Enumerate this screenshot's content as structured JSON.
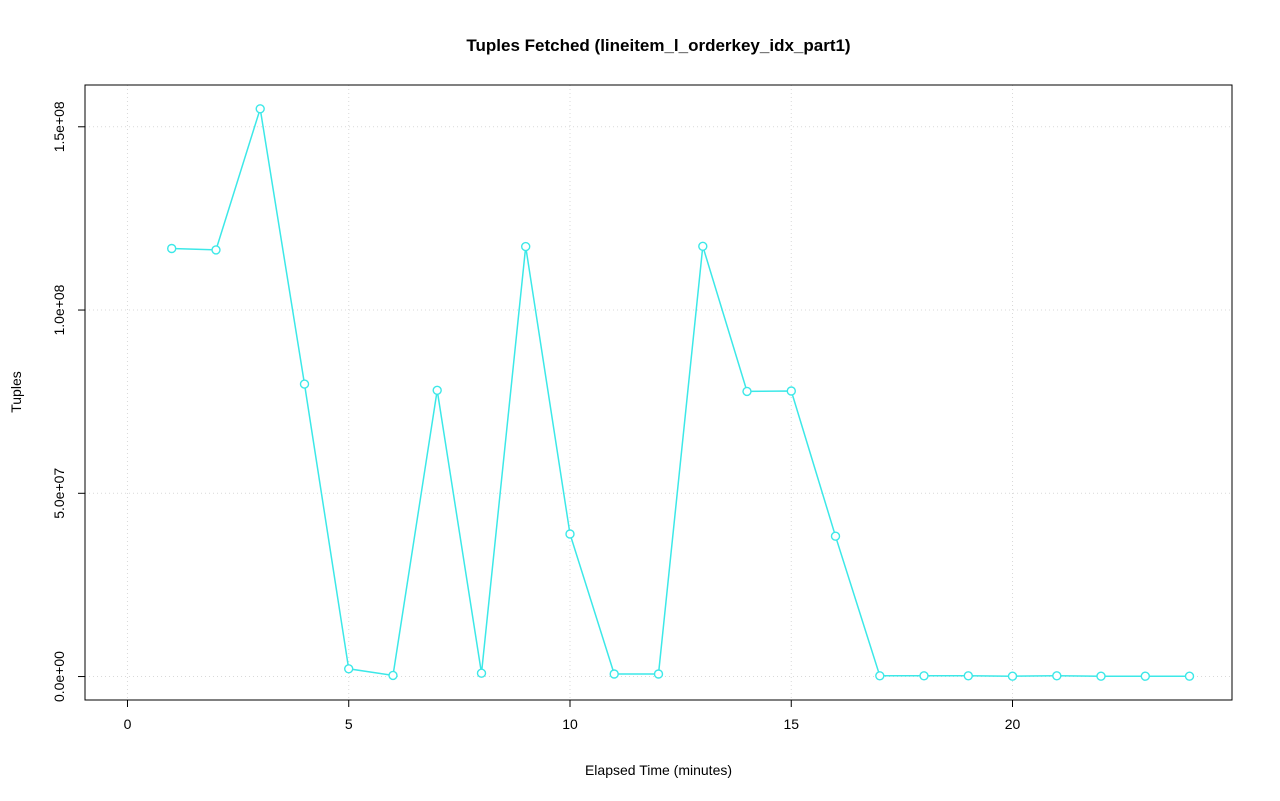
{
  "chart_data": {
    "type": "line",
    "title": "Tuples Fetched (lineitem_l_orderkey_idx_part1)",
    "xlabel": "Elapsed Time (minutes)",
    "ylabel": "Tuples",
    "x": [
      1,
      2,
      3,
      4,
      5,
      6,
      7,
      8,
      9,
      10,
      11,
      12,
      13,
      14,
      15,
      16,
      17,
      18,
      19,
      20,
      21,
      22,
      23,
      24
    ],
    "series": [
      {
        "name": "tuples_fetched",
        "values": [
          116800000,
          116400000,
          154900000,
          79800000,
          2100000,
          300000,
          78100000,
          900000,
          117300000,
          38900000,
          700000,
          700000,
          117400000,
          77800000,
          77900000,
          38300000,
          200000,
          200000,
          200000,
          100000,
          200000,
          100000,
          100000,
          100000
        ]
      }
    ],
    "xlim": [
      -0.96,
      24.96
    ],
    "ylim": [
      -6400000,
      161400000
    ],
    "xticks": {
      "values": [
        0,
        5,
        10,
        15,
        20
      ],
      "labels": [
        "0",
        "5",
        "10",
        "15",
        "20"
      ]
    },
    "yticks": {
      "values": [
        0,
        50000000,
        100000000,
        150000000
      ],
      "labels": [
        "0.0e+00",
        "5.0e+07",
        "1.0e+08",
        "1.5e+08"
      ]
    },
    "grid": true,
    "legend": "none",
    "line_color": "#3ce8e8",
    "grid_color": "#d9d9d9",
    "axis_color": "#000000",
    "marker": "open-circle"
  }
}
